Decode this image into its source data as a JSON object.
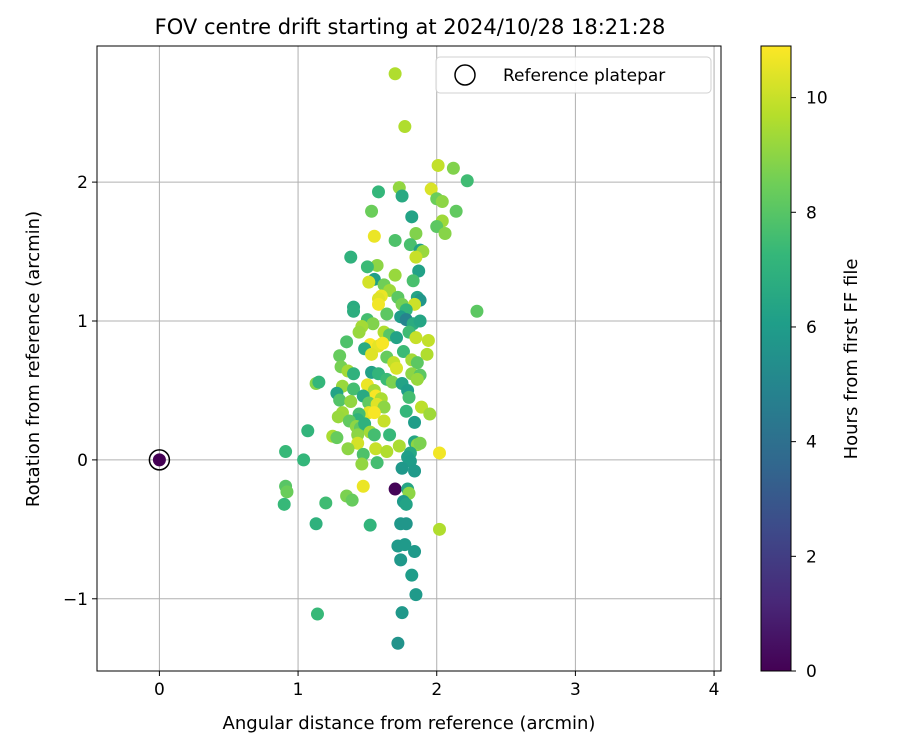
{
  "chart_data": {
    "type": "scatter",
    "title": "FOV centre drift starting at 2024/10/28 18:21:28",
    "xlabel": "Angular distance from reference (arcmin)",
    "ylabel": "Rotation from reference (arcmin)",
    "xlim": [
      -0.45,
      4.05
    ],
    "ylim": [
      -1.52,
      2.98
    ],
    "xticks": [
      0,
      1,
      2,
      3,
      4
    ],
    "yticks": [
      -1,
      0,
      1,
      2
    ],
    "grid": true,
    "legend": {
      "position": "top-right",
      "entries": [
        "Reference platepar"
      ]
    },
    "colorbar": {
      "label": "Hours from first FF file",
      "min": 0,
      "max": 10.9,
      "ticks": [
        0,
        2,
        4,
        6,
        8,
        10
      ],
      "colormap": "viridis"
    },
    "reference_point": {
      "x": 0,
      "y": 0,
      "hours": 0
    },
    "points": [
      {
        "x": 1.7,
        "y": 2.78,
        "h": 9.6
      },
      {
        "x": 1.77,
        "y": 2.4,
        "h": 9.6
      },
      {
        "x": 2.01,
        "y": 2.12,
        "h": 9.9
      },
      {
        "x": 2.12,
        "y": 2.1,
        "h": 8.8
      },
      {
        "x": 2.22,
        "y": 2.01,
        "h": 7.5
      },
      {
        "x": 1.58,
        "y": 1.93,
        "h": 7.2
      },
      {
        "x": 1.73,
        "y": 1.96,
        "h": 9.1
      },
      {
        "x": 1.75,
        "y": 1.9,
        "h": 6.6
      },
      {
        "x": 1.96,
        "y": 1.95,
        "h": 10.3
      },
      {
        "x": 2.0,
        "y": 1.88,
        "h": 8.4
      },
      {
        "x": 2.04,
        "y": 1.86,
        "h": 9.0
      },
      {
        "x": 1.53,
        "y": 1.79,
        "h": 8.4
      },
      {
        "x": 2.14,
        "y": 1.79,
        "h": 8.2
      },
      {
        "x": 1.82,
        "y": 1.75,
        "h": 6.3
      },
      {
        "x": 2.04,
        "y": 1.72,
        "h": 9.3
      },
      {
        "x": 2.0,
        "y": 1.68,
        "h": 8.1
      },
      {
        "x": 1.85,
        "y": 1.63,
        "h": 8.8
      },
      {
        "x": 1.55,
        "y": 1.61,
        "h": 10.6
      },
      {
        "x": 1.7,
        "y": 1.58,
        "h": 7.8
      },
      {
        "x": 2.06,
        "y": 1.63,
        "h": 8.9
      },
      {
        "x": 1.81,
        "y": 1.55,
        "h": 7.7
      },
      {
        "x": 1.88,
        "y": 1.51,
        "h": 6.2
      },
      {
        "x": 1.9,
        "y": 1.5,
        "h": 9.2
      },
      {
        "x": 1.85,
        "y": 1.46,
        "h": 10.0
      },
      {
        "x": 1.38,
        "y": 1.46,
        "h": 7.0
      },
      {
        "x": 1.57,
        "y": 1.4,
        "h": 9.0
      },
      {
        "x": 1.5,
        "y": 1.39,
        "h": 7.4
      },
      {
        "x": 1.87,
        "y": 1.36,
        "h": 6.2
      },
      {
        "x": 1.7,
        "y": 1.33,
        "h": 9.2
      },
      {
        "x": 1.55,
        "y": 1.3,
        "h": 6.1
      },
      {
        "x": 1.51,
        "y": 1.28,
        "h": 10.2
      },
      {
        "x": 1.83,
        "y": 1.29,
        "h": 7.7
      },
      {
        "x": 1.62,
        "y": 1.26,
        "h": 8.5
      },
      {
        "x": 1.66,
        "y": 1.22,
        "h": 9.3
      },
      {
        "x": 1.6,
        "y": 1.18,
        "h": 10.6
      },
      {
        "x": 1.72,
        "y": 1.17,
        "h": 8.1
      },
      {
        "x": 1.58,
        "y": 1.16,
        "h": 10.4
      },
      {
        "x": 1.58,
        "y": 1.12,
        "h": 10.7
      },
      {
        "x": 1.86,
        "y": 1.17,
        "h": 6.4
      },
      {
        "x": 1.88,
        "y": 1.15,
        "h": 5.7
      },
      {
        "x": 1.75,
        "y": 1.12,
        "h": 8.6
      },
      {
        "x": 1.84,
        "y": 1.12,
        "h": 10.1
      },
      {
        "x": 1.78,
        "y": 1.08,
        "h": 7.2
      },
      {
        "x": 1.4,
        "y": 1.1,
        "h": 6.7
      },
      {
        "x": 1.4,
        "y": 1.07,
        "h": 6.8
      },
      {
        "x": 2.29,
        "y": 1.07,
        "h": 8.1
      },
      {
        "x": 1.64,
        "y": 1.05,
        "h": 8.1
      },
      {
        "x": 1.74,
        "y": 1.03,
        "h": 6.0
      },
      {
        "x": 1.78,
        "y": 1.01,
        "h": 4.9
      },
      {
        "x": 1.83,
        "y": 0.98,
        "h": 6.7
      },
      {
        "x": 1.88,
        "y": 1.0,
        "h": 6.4
      },
      {
        "x": 1.5,
        "y": 1.01,
        "h": 7.6
      },
      {
        "x": 1.54,
        "y": 0.98,
        "h": 8.8
      },
      {
        "x": 1.46,
        "y": 0.96,
        "h": 9.4
      },
      {
        "x": 1.44,
        "y": 0.92,
        "h": 9.2
      },
      {
        "x": 1.62,
        "y": 0.92,
        "h": 9.6
      },
      {
        "x": 1.66,
        "y": 0.9,
        "h": 8.0
      },
      {
        "x": 1.71,
        "y": 0.88,
        "h": 6.3
      },
      {
        "x": 1.8,
        "y": 0.92,
        "h": 7.5
      },
      {
        "x": 1.85,
        "y": 0.88,
        "h": 10.0
      },
      {
        "x": 1.94,
        "y": 0.86,
        "h": 9.9
      },
      {
        "x": 1.35,
        "y": 0.85,
        "h": 7.8
      },
      {
        "x": 1.52,
        "y": 0.83,
        "h": 10.8
      },
      {
        "x": 1.58,
        "y": 0.82,
        "h": 10.5
      },
      {
        "x": 1.61,
        "y": 0.84,
        "h": 10.8
      },
      {
        "x": 1.48,
        "y": 0.8,
        "h": 6.7
      },
      {
        "x": 1.53,
        "y": 0.76,
        "h": 10.4
      },
      {
        "x": 1.64,
        "y": 0.74,
        "h": 8.3
      },
      {
        "x": 1.76,
        "y": 0.78,
        "h": 7.4
      },
      {
        "x": 1.82,
        "y": 0.72,
        "h": 9.4
      },
      {
        "x": 1.86,
        "y": 0.7,
        "h": 8.1
      },
      {
        "x": 1.93,
        "y": 0.76,
        "h": 9.6
      },
      {
        "x": 1.3,
        "y": 0.75,
        "h": 8.3
      },
      {
        "x": 1.69,
        "y": 0.7,
        "h": 9.9
      },
      {
        "x": 1.71,
        "y": 0.66,
        "h": 10.3
      },
      {
        "x": 1.31,
        "y": 0.67,
        "h": 8.6
      },
      {
        "x": 1.36,
        "y": 0.64,
        "h": 9.4
      },
      {
        "x": 1.53,
        "y": 0.63,
        "h": 6.2
      },
      {
        "x": 1.58,
        "y": 0.62,
        "h": 7.1
      },
      {
        "x": 1.4,
        "y": 0.62,
        "h": 7.0
      },
      {
        "x": 1.82,
        "y": 0.62,
        "h": 9.0
      },
      {
        "x": 1.88,
        "y": 0.61,
        "h": 8.1
      },
      {
        "x": 1.64,
        "y": 0.58,
        "h": 7.4
      },
      {
        "x": 1.68,
        "y": 0.56,
        "h": 8.7
      },
      {
        "x": 1.75,
        "y": 0.55,
        "h": 6.3
      },
      {
        "x": 1.86,
        "y": 0.58,
        "h": 9.2
      },
      {
        "x": 1.13,
        "y": 0.55,
        "h": 8.9
      },
      {
        "x": 1.15,
        "y": 0.56,
        "h": 7.2
      },
      {
        "x": 1.5,
        "y": 0.54,
        "h": 10.6
      },
      {
        "x": 1.32,
        "y": 0.53,
        "h": 9.2
      },
      {
        "x": 1.4,
        "y": 0.51,
        "h": 7.6
      },
      {
        "x": 1.55,
        "y": 0.5,
        "h": 9.4
      },
      {
        "x": 1.56,
        "y": 0.46,
        "h": 10.8
      },
      {
        "x": 1.28,
        "y": 0.48,
        "h": 6.3
      },
      {
        "x": 1.47,
        "y": 0.46,
        "h": 6.6
      },
      {
        "x": 1.6,
        "y": 0.44,
        "h": 9.5
      },
      {
        "x": 1.79,
        "y": 0.5,
        "h": 6.0
      },
      {
        "x": 1.8,
        "y": 0.45,
        "h": 7.6
      },
      {
        "x": 1.3,
        "y": 0.43,
        "h": 7.9
      },
      {
        "x": 1.38,
        "y": 0.42,
        "h": 9.1
      },
      {
        "x": 1.51,
        "y": 0.41,
        "h": 8.2
      },
      {
        "x": 1.57,
        "y": 0.4,
        "h": 10.4
      },
      {
        "x": 1.62,
        "y": 0.38,
        "h": 9.0
      },
      {
        "x": 1.89,
        "y": 0.38,
        "h": 9.8
      },
      {
        "x": 1.78,
        "y": 0.35,
        "h": 7.2
      },
      {
        "x": 1.51,
        "y": 0.34,
        "h": 10.5
      },
      {
        "x": 1.55,
        "y": 0.34,
        "h": 10.8
      },
      {
        "x": 1.95,
        "y": 0.33,
        "h": 9.3
      },
      {
        "x": 1.32,
        "y": 0.34,
        "h": 9.3
      },
      {
        "x": 1.29,
        "y": 0.31,
        "h": 9.2
      },
      {
        "x": 1.44,
        "y": 0.33,
        "h": 7.6
      },
      {
        "x": 1.43,
        "y": 0.29,
        "h": 7.0
      },
      {
        "x": 1.37,
        "y": 0.28,
        "h": 8.2
      },
      {
        "x": 1.62,
        "y": 0.28,
        "h": 10.0
      },
      {
        "x": 1.84,
        "y": 0.27,
        "h": 6.0
      },
      {
        "x": 1.42,
        "y": 0.24,
        "h": 9.0
      },
      {
        "x": 1.45,
        "y": 0.23,
        "h": 8.2
      },
      {
        "x": 1.48,
        "y": 0.26,
        "h": 7.0
      },
      {
        "x": 1.07,
        "y": 0.21,
        "h": 7.1
      },
      {
        "x": 1.52,
        "y": 0.2,
        "h": 9.4
      },
      {
        "x": 1.55,
        "y": 0.18,
        "h": 7.6
      },
      {
        "x": 1.66,
        "y": 0.18,
        "h": 7.3
      },
      {
        "x": 1.25,
        "y": 0.17,
        "h": 9.5
      },
      {
        "x": 1.28,
        "y": 0.16,
        "h": 8.3
      },
      {
        "x": 1.43,
        "y": 0.18,
        "h": 9.0
      },
      {
        "x": 1.84,
        "y": 0.13,
        "h": 6.4
      },
      {
        "x": 1.86,
        "y": 0.11,
        "h": 9.0
      },
      {
        "x": 1.88,
        "y": 0.12,
        "h": 8.7
      },
      {
        "x": 1.43,
        "y": 0.12,
        "h": 10.2
      },
      {
        "x": 1.73,
        "y": 0.1,
        "h": 9.5
      },
      {
        "x": 1.36,
        "y": 0.08,
        "h": 9.0
      },
      {
        "x": 1.81,
        "y": 0.05,
        "h": 6.5
      },
      {
        "x": 2.02,
        "y": 0.05,
        "h": 10.7
      },
      {
        "x": 1.47,
        "y": 0.04,
        "h": 7.8
      },
      {
        "x": 1.56,
        "y": 0.08,
        "h": 10.0
      },
      {
        "x": 1.64,
        "y": 0.06,
        "h": 9.6
      },
      {
        "x": 1.79,
        "y": 0.02,
        "h": 6.1
      },
      {
        "x": 0.91,
        "y": 0.06,
        "h": 7.3
      },
      {
        "x": 1.04,
        "y": 0.0,
        "h": 7.2
      },
      {
        "x": 1.46,
        "y": -0.03,
        "h": 9.1
      },
      {
        "x": 1.57,
        "y": -0.02,
        "h": 7.6
      },
      {
        "x": 1.81,
        "y": -0.01,
        "h": 6.0
      },
      {
        "x": 1.75,
        "y": -0.06,
        "h": 5.8
      },
      {
        "x": 1.84,
        "y": -0.08,
        "h": 5.9
      },
      {
        "x": 1.7,
        "y": -0.21,
        "h": 0.1
      },
      {
        "x": 1.79,
        "y": -0.21,
        "h": 6.4
      },
      {
        "x": 1.8,
        "y": -0.24,
        "h": 9.0
      },
      {
        "x": 1.47,
        "y": -0.19,
        "h": 10.6
      },
      {
        "x": 0.91,
        "y": -0.19,
        "h": 8.0
      },
      {
        "x": 0.92,
        "y": -0.23,
        "h": 8.4
      },
      {
        "x": 1.35,
        "y": -0.26,
        "h": 8.7
      },
      {
        "x": 1.39,
        "y": -0.29,
        "h": 8.3
      },
      {
        "x": 1.2,
        "y": -0.31,
        "h": 7.5
      },
      {
        "x": 1.76,
        "y": -0.3,
        "h": 5.9
      },
      {
        "x": 1.78,
        "y": -0.32,
        "h": 6.3
      },
      {
        "x": 0.9,
        "y": -0.32,
        "h": 7.3
      },
      {
        "x": 1.13,
        "y": -0.46,
        "h": 7.0
      },
      {
        "x": 1.52,
        "y": -0.47,
        "h": 7.1
      },
      {
        "x": 1.74,
        "y": -0.46,
        "h": 5.8
      },
      {
        "x": 1.78,
        "y": -0.46,
        "h": 5.7
      },
      {
        "x": 2.02,
        "y": -0.5,
        "h": 9.6
      },
      {
        "x": 1.72,
        "y": -0.62,
        "h": 5.9
      },
      {
        "x": 1.77,
        "y": -0.61,
        "h": 5.9
      },
      {
        "x": 1.84,
        "y": -0.66,
        "h": 5.9
      },
      {
        "x": 1.74,
        "y": -0.72,
        "h": 5.8
      },
      {
        "x": 1.82,
        "y": -0.83,
        "h": 6.0
      },
      {
        "x": 1.85,
        "y": -0.97,
        "h": 5.9
      },
      {
        "x": 1.75,
        "y": -1.1,
        "h": 5.8
      },
      {
        "x": 1.14,
        "y": -1.11,
        "h": 7.3
      },
      {
        "x": 1.72,
        "y": -1.32,
        "h": 5.6
      }
    ]
  }
}
